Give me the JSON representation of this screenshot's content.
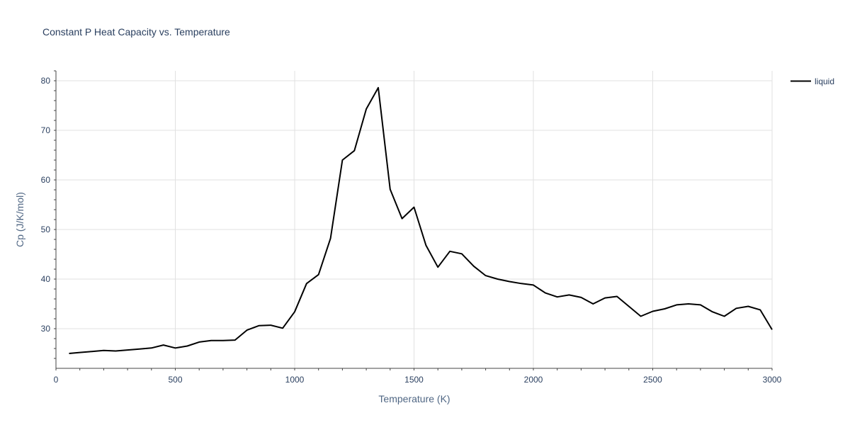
{
  "chart_data": {
    "type": "line",
    "title": "Constant P Heat Capacity vs. Temperature",
    "xlabel": "Temperature (K)",
    "ylabel": "Cp (J/K/mol)",
    "xlim": [
      0,
      3000
    ],
    "ylim": [
      22,
      82
    ],
    "x_ticks": [
      0,
      500,
      1000,
      1500,
      2000,
      2500,
      3000
    ],
    "y_ticks": [
      30,
      40,
      50,
      60,
      70,
      80
    ],
    "x_tick_labels": [
      "0",
      "500",
      "1000",
      "1500",
      "2000",
      "2500",
      "3000"
    ],
    "y_tick_labels": [
      "30",
      "40",
      "50",
      "60",
      "70",
      "80"
    ],
    "grid": true,
    "legend_position": "top-right",
    "series": [
      {
        "name": "liquid",
        "color": "#000000",
        "x": [
          55,
          100,
          150,
          200,
          250,
          300,
          350,
          400,
          450,
          500,
          550,
          600,
          650,
          700,
          750,
          800,
          850,
          900,
          950,
          1000,
          1050,
          1100,
          1150,
          1200,
          1250,
          1300,
          1350,
          1400,
          1450,
          1500,
          1550,
          1600,
          1650,
          1700,
          1750,
          1800,
          1850,
          1900,
          1950,
          2000,
          2050,
          2100,
          2150,
          2200,
          2250,
          2300,
          2350,
          2400,
          2450,
          2500,
          2550,
          2600,
          2650,
          2700,
          2750,
          2800,
          2850,
          2900,
          2950,
          3000
        ],
        "y": [
          25.0,
          25.2,
          25.4,
          25.6,
          25.5,
          25.7,
          25.9,
          26.1,
          26.7,
          26.1,
          26.5,
          27.3,
          27.6,
          27.6,
          27.7,
          29.7,
          30.6,
          30.7,
          30.1,
          33.4,
          39.1,
          40.9,
          48.2,
          64.0,
          65.9,
          74.3,
          78.6,
          58.1,
          52.2,
          54.5,
          46.8,
          42.4,
          45.6,
          45.1,
          42.6,
          40.7,
          40.0,
          39.5,
          39.1,
          38.8,
          37.2,
          36.4,
          36.8,
          36.3,
          35.0,
          36.2,
          36.5,
          34.5,
          32.5,
          33.5,
          34.0,
          34.8,
          35.0,
          34.8,
          33.4,
          32.5,
          34.1,
          34.5,
          33.8,
          29.8
        ]
      }
    ]
  }
}
